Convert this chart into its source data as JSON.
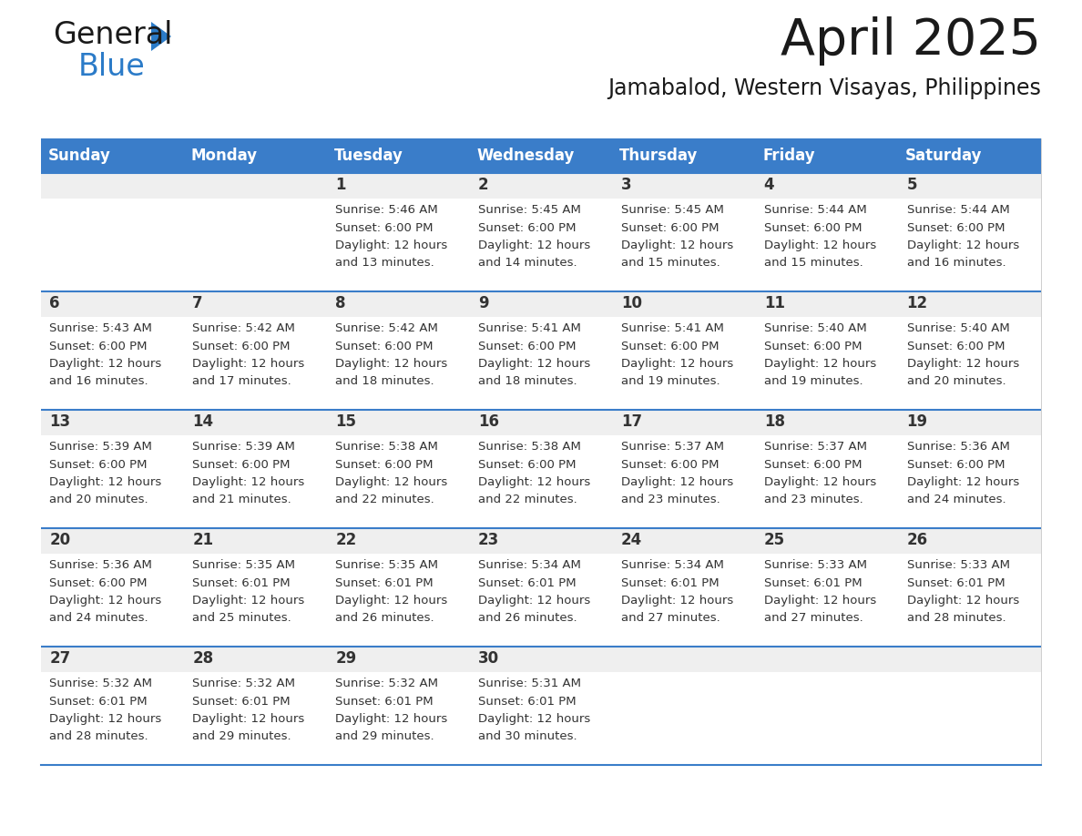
{
  "title": "April 2025",
  "subtitle": "Jamabalod, Western Visayas, Philippines",
  "days_of_week": [
    "Sunday",
    "Monday",
    "Tuesday",
    "Wednesday",
    "Thursday",
    "Friday",
    "Saturday"
  ],
  "header_bg": "#3A7DC9",
  "header_text": "#FFFFFF",
  "cell_bg_light": "#EFEFEF",
  "cell_bg_white": "#FFFFFF",
  "separator_color": "#3A7DC9",
  "row_sep_color": "#3A7DC9",
  "text_color": "#333333",
  "calendar_data": [
    [
      {
        "day": "",
        "sunrise": "",
        "sunset": "",
        "minutes": ""
      },
      {
        "day": "",
        "sunrise": "",
        "sunset": "",
        "minutes": ""
      },
      {
        "day": "1",
        "sunrise": "5:46 AM",
        "sunset": "6:00 PM",
        "minutes": "13 minutes."
      },
      {
        "day": "2",
        "sunrise": "5:45 AM",
        "sunset": "6:00 PM",
        "minutes": "14 minutes."
      },
      {
        "day": "3",
        "sunrise": "5:45 AM",
        "sunset": "6:00 PM",
        "minutes": "15 minutes."
      },
      {
        "day": "4",
        "sunrise": "5:44 AM",
        "sunset": "6:00 PM",
        "minutes": "15 minutes."
      },
      {
        "day": "5",
        "sunrise": "5:44 AM",
        "sunset": "6:00 PM",
        "minutes": "16 minutes."
      }
    ],
    [
      {
        "day": "6",
        "sunrise": "5:43 AM",
        "sunset": "6:00 PM",
        "minutes": "16 minutes."
      },
      {
        "day": "7",
        "sunrise": "5:42 AM",
        "sunset": "6:00 PM",
        "minutes": "17 minutes."
      },
      {
        "day": "8",
        "sunrise": "5:42 AM",
        "sunset": "6:00 PM",
        "minutes": "18 minutes."
      },
      {
        "day": "9",
        "sunrise": "5:41 AM",
        "sunset": "6:00 PM",
        "minutes": "18 minutes."
      },
      {
        "day": "10",
        "sunrise": "5:41 AM",
        "sunset": "6:00 PM",
        "minutes": "19 minutes."
      },
      {
        "day": "11",
        "sunrise": "5:40 AM",
        "sunset": "6:00 PM",
        "minutes": "19 minutes."
      },
      {
        "day": "12",
        "sunrise": "5:40 AM",
        "sunset": "6:00 PM",
        "minutes": "20 minutes."
      }
    ],
    [
      {
        "day": "13",
        "sunrise": "5:39 AM",
        "sunset": "6:00 PM",
        "minutes": "20 minutes."
      },
      {
        "day": "14",
        "sunrise": "5:39 AM",
        "sunset": "6:00 PM",
        "minutes": "21 minutes."
      },
      {
        "day": "15",
        "sunrise": "5:38 AM",
        "sunset": "6:00 PM",
        "minutes": "22 minutes."
      },
      {
        "day": "16",
        "sunrise": "5:38 AM",
        "sunset": "6:00 PM",
        "minutes": "22 minutes."
      },
      {
        "day": "17",
        "sunrise": "5:37 AM",
        "sunset": "6:00 PM",
        "minutes": "23 minutes."
      },
      {
        "day": "18",
        "sunrise": "5:37 AM",
        "sunset": "6:00 PM",
        "minutes": "23 minutes."
      },
      {
        "day": "19",
        "sunrise": "5:36 AM",
        "sunset": "6:00 PM",
        "minutes": "24 minutes."
      }
    ],
    [
      {
        "day": "20",
        "sunrise": "5:36 AM",
        "sunset": "6:00 PM",
        "minutes": "24 minutes."
      },
      {
        "day": "21",
        "sunrise": "5:35 AM",
        "sunset": "6:01 PM",
        "minutes": "25 minutes."
      },
      {
        "day": "22",
        "sunrise": "5:35 AM",
        "sunset": "6:01 PM",
        "minutes": "26 minutes."
      },
      {
        "day": "23",
        "sunrise": "5:34 AM",
        "sunset": "6:01 PM",
        "minutes": "26 minutes."
      },
      {
        "day": "24",
        "sunrise": "5:34 AM",
        "sunset": "6:01 PM",
        "minutes": "27 minutes."
      },
      {
        "day": "25",
        "sunrise": "5:33 AM",
        "sunset": "6:01 PM",
        "minutes": "27 minutes."
      },
      {
        "day": "26",
        "sunrise": "5:33 AM",
        "sunset": "6:01 PM",
        "minutes": "28 minutes."
      }
    ],
    [
      {
        "day": "27",
        "sunrise": "5:32 AM",
        "sunset": "6:01 PM",
        "minutes": "28 minutes."
      },
      {
        "day": "28",
        "sunrise": "5:32 AM",
        "sunset": "6:01 PM",
        "minutes": "29 minutes."
      },
      {
        "day": "29",
        "sunrise": "5:32 AM",
        "sunset": "6:01 PM",
        "minutes": "29 minutes."
      },
      {
        "day": "30",
        "sunrise": "5:31 AM",
        "sunset": "6:01 PM",
        "minutes": "30 minutes."
      },
      {
        "day": "",
        "sunrise": "",
        "sunset": "",
        "minutes": ""
      },
      {
        "day": "",
        "sunrise": "",
        "sunset": "",
        "minutes": ""
      },
      {
        "day": "",
        "sunrise": "",
        "sunset": "",
        "minutes": ""
      }
    ]
  ],
  "logo_text_general": "General",
  "logo_text_blue": "Blue",
  "logo_color_general": "#1a1a1a",
  "logo_color_blue": "#2B7BC8",
  "logo_triangle_color": "#2B7BC8"
}
